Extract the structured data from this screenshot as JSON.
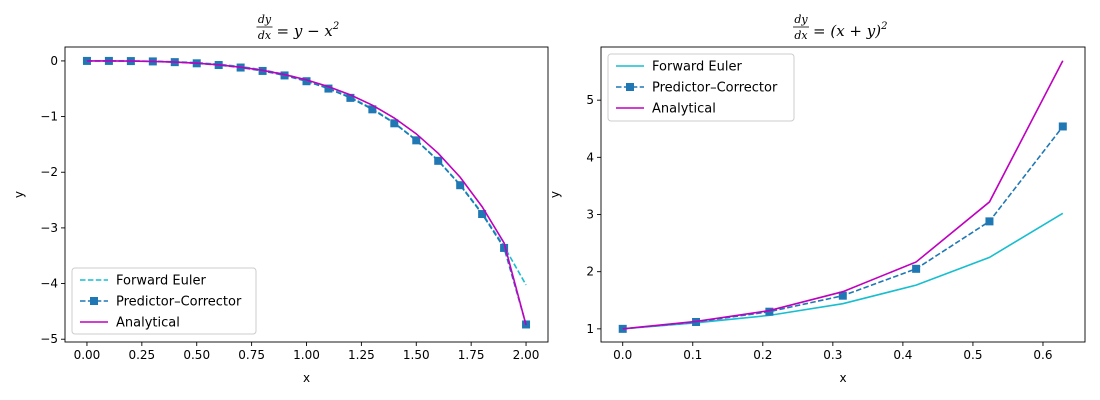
{
  "chart_data": [
    {
      "type": "line",
      "title": "dy/dx = y − x²",
      "title_parts": {
        "num": "dy",
        "den": "dx",
        "rhs": "= y − x",
        "sup": "2"
      },
      "xlabel": "x",
      "ylabel": "y",
      "xlim": [
        -0.1,
        2.1
      ],
      "ylim": [
        -5.05,
        0.25
      ],
      "xticks": [
        0.0,
        0.25,
        0.5,
        0.75,
        1.0,
        1.25,
        1.5,
        1.75,
        2.0
      ],
      "xtick_labels": [
        "0.00",
        "0.25",
        "0.50",
        "0.75",
        "1.00",
        "1.25",
        "1.50",
        "1.75",
        "2.00"
      ],
      "yticks": [
        0,
        -1,
        -2,
        -3,
        -4,
        -5
      ],
      "ytick_labels": [
        "0",
        "−1",
        "−2",
        "−3",
        "−4",
        "−5"
      ],
      "legend": "lower-left",
      "grid": false,
      "x": [
        0.0,
        0.1,
        0.2,
        0.3,
        0.4,
        0.5,
        0.6,
        0.7,
        0.8,
        0.9,
        1.0,
        1.1,
        1.2,
        1.3,
        1.4,
        1.5,
        1.6,
        1.7,
        1.8,
        1.9,
        2.0
      ],
      "series": [
        {
          "name": "Forward Euler",
          "style": "dashed",
          "color": "#17becf",
          "marker": "none",
          "values": [
            0.0,
            0.0,
            -0.001,
            -0.005,
            -0.014,
            -0.031,
            -0.059,
            -0.101,
            -0.16,
            -0.24,
            -0.345,
            -0.479,
            -0.648,
            -0.857,
            -1.112,
            -1.42,
            -1.787,
            -2.222,
            -2.734,
            -3.331,
            -4.025
          ]
        },
        {
          "name": "Predictor–Corrector",
          "style": "dashed",
          "color": "#1f77b4",
          "marker": "square",
          "values": [
            0.0,
            0.0,
            -0.003,
            -0.009,
            -0.022,
            -0.043,
            -0.074,
            -0.119,
            -0.18,
            -0.261,
            -0.365,
            -0.497,
            -0.664,
            -0.87,
            -1.121,
            -1.427,
            -1.795,
            -2.233,
            -2.751,
            -3.36,
            -4.735
          ]
        },
        {
          "name": "Analytical",
          "style": "solid",
          "color": "#bf00bf",
          "marker": "none",
          "values": [
            0.0,
            0.0,
            -0.003,
            -0.009,
            -0.021,
            -0.041,
            -0.07,
            -0.112,
            -0.169,
            -0.245,
            -0.341,
            -0.462,
            -0.61,
            -0.795,
            -1.026,
            -1.31,
            -1.66,
            -2.09,
            -2.62,
            -3.27,
            -4.745
          ]
        }
      ]
    },
    {
      "type": "line",
      "title": "dy/dx = (x + y)²",
      "title_parts": {
        "num": "dy",
        "den": "dx",
        "rhs": "= (x + y)",
        "sup": "2"
      },
      "xlabel": "x",
      "ylabel": "y",
      "xlim": [
        -0.031,
        0.66
      ],
      "ylim": [
        0.77,
        5.93
      ],
      "xticks": [
        0.0,
        0.1,
        0.2,
        0.3,
        0.4,
        0.5,
        0.6
      ],
      "xtick_labels": [
        "0.0",
        "0.1",
        "0.2",
        "0.3",
        "0.4",
        "0.5",
        "0.6"
      ],
      "yticks": [
        1,
        2,
        3,
        4,
        5
      ],
      "ytick_labels": [
        "1",
        "2",
        "3",
        "4",
        "5"
      ],
      "legend": "upper-left",
      "grid": false,
      "x": [
        0.0,
        0.1047,
        0.2094,
        0.3142,
        0.4189,
        0.5236,
        0.6283
      ],
      "series": [
        {
          "name": "Forward Euler",
          "style": "solid",
          "color": "#17becf",
          "marker": "none",
          "values": [
            1.0,
            1.105,
            1.236,
            1.44,
            1.765,
            2.25,
            3.02
          ]
        },
        {
          "name": "Predictor–Corrector",
          "style": "dashed",
          "color": "#1f77b4",
          "marker": "square",
          "values": [
            1.0,
            1.12,
            1.3,
            1.58,
            2.05,
            2.88,
            4.54
          ]
        },
        {
          "name": "Analytical",
          "style": "solid",
          "color": "#bf00bf",
          "marker": "none",
          "values": [
            1.0,
            1.13,
            1.32,
            1.65,
            2.17,
            3.22,
            5.69
          ]
        }
      ]
    }
  ]
}
